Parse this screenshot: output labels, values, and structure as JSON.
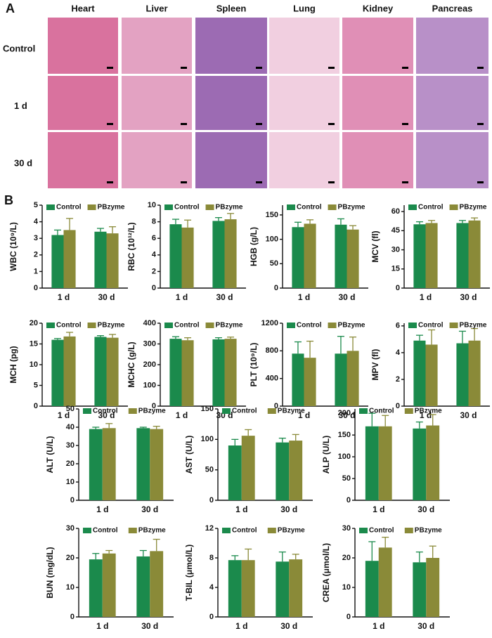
{
  "panel_a": {
    "label": "A",
    "columns": [
      "Heart",
      "Liver",
      "Spleen",
      "Lung",
      "Kidney",
      "Pancreas"
    ],
    "rows": [
      "Control",
      "1 d",
      "30 d"
    ]
  },
  "panel_b": {
    "label": "B"
  },
  "chart_data": [
    {
      "type": "bar",
      "ylabel": "WBC (10⁹/L)",
      "categories": [
        "1 d",
        "30 d"
      ],
      "ylim": [
        0,
        5
      ],
      "yticks": [
        0,
        1,
        2,
        3,
        4,
        5
      ],
      "series": [
        {
          "name": "Control",
          "color": "#1b8a4c",
          "values": [
            3.2,
            3.4
          ],
          "errors": [
            0.3,
            0.2
          ]
        },
        {
          "name": "PBzyme",
          "color": "#8a8a38",
          "values": [
            3.5,
            3.3
          ],
          "errors": [
            0.7,
            0.4
          ]
        }
      ]
    },
    {
      "type": "bar",
      "ylabel": "RBC (10¹²/L)",
      "categories": [
        "1 d",
        "30 d"
      ],
      "ylim": [
        0,
        10
      ],
      "yticks": [
        0,
        2,
        4,
        6,
        8,
        10
      ],
      "series": [
        {
          "name": "Control",
          "color": "#1b8a4c",
          "values": [
            7.7,
            8.1
          ],
          "errors": [
            0.6,
            0.4
          ]
        },
        {
          "name": "PBzyme",
          "color": "#8a8a38",
          "values": [
            7.3,
            8.3
          ],
          "errors": [
            0.9,
            0.7
          ]
        }
      ]
    },
    {
      "type": "bar",
      "ylabel": "HGB (g/L)",
      "categories": [
        "1 d",
        "30 d"
      ],
      "ylim": [
        0,
        170
      ],
      "yticks": [
        0,
        50,
        100,
        150
      ],
      "series": [
        {
          "name": "Control",
          "color": "#1b8a4c",
          "values": [
            125,
            130
          ],
          "errors": [
            10,
            12
          ]
        },
        {
          "name": "PBzyme",
          "color": "#8a8a38",
          "values": [
            132,
            120
          ],
          "errors": [
            8,
            8
          ]
        }
      ]
    },
    {
      "type": "bar",
      "ylabel": "MCV (fl)",
      "categories": [
        "1 d",
        "30 d"
      ],
      "ylim": [
        0,
        65
      ],
      "yticks": [
        0,
        15,
        30,
        45,
        60
      ],
      "series": [
        {
          "name": "Control",
          "color": "#1b8a4c",
          "values": [
            50,
            51
          ],
          "errors": [
            2,
            2
          ]
        },
        {
          "name": "PBzyme",
          "color": "#8a8a38",
          "values": [
            51,
            53
          ],
          "errors": [
            2,
            2
          ]
        }
      ]
    },
    {
      "type": "bar",
      "ylabel": "MCH (pg)",
      "categories": [
        "1 d",
        "30 d"
      ],
      "ylim": [
        0,
        20
      ],
      "yticks": [
        0,
        5,
        10,
        15,
        20
      ],
      "series": [
        {
          "name": "Control",
          "color": "#1b8a4c",
          "values": [
            16,
            16.7
          ],
          "errors": [
            0.3,
            0.3
          ]
        },
        {
          "name": "PBzyme",
          "color": "#8a8a38",
          "values": [
            16.8,
            16.5
          ],
          "errors": [
            1,
            0.8
          ]
        }
      ]
    },
    {
      "type": "bar",
      "ylabel": "MCHC (g/L)",
      "categories": [
        "1 d",
        "30 d"
      ],
      "ylim": [
        0,
        400
      ],
      "yticks": [
        0,
        100,
        200,
        300,
        400
      ],
      "series": [
        {
          "name": "Control",
          "color": "#1b8a4c",
          "values": [
            325,
            322
          ],
          "errors": [
            10,
            8
          ]
        },
        {
          "name": "PBzyme",
          "color": "#8a8a38",
          "values": [
            318,
            325
          ],
          "errors": [
            12,
            8
          ]
        }
      ]
    },
    {
      "type": "bar",
      "ylabel": "PLT (10⁹/L)",
      "categories": [
        "1 d",
        "30 d"
      ],
      "ylim": [
        0,
        1200
      ],
      "yticks": [
        0,
        400,
        800,
        1200
      ],
      "series": [
        {
          "name": "Control",
          "color": "#1b8a4c",
          "values": [
            760,
            760
          ],
          "errors": [
            170,
            250
          ]
        },
        {
          "name": "PBzyme",
          "color": "#8a8a38",
          "values": [
            700,
            800
          ],
          "errors": [
            240,
            200
          ]
        }
      ]
    },
    {
      "type": "bar",
      "ylabel": "MPV (fl)",
      "categories": [
        "1 d",
        "30 d"
      ],
      "ylim": [
        0,
        6.2
      ],
      "yticks": [
        0,
        2,
        4,
        6
      ],
      "series": [
        {
          "name": "Control",
          "color": "#1b8a4c",
          "values": [
            4.9,
            4.7
          ],
          "errors": [
            0.4,
            0.9
          ]
        },
        {
          "name": "PBzyme",
          "color": "#8a8a38",
          "values": [
            4.6,
            4.9
          ],
          "errors": [
            1.1,
            0.9
          ]
        }
      ]
    },
    {
      "type": "bar",
      "ylabel": "ALT (U/L)",
      "categories": [
        "1 d",
        "30 d"
      ],
      "ylim": [
        0,
        50
      ],
      "yticks": [
        0,
        10,
        20,
        30,
        40,
        50
      ],
      "series": [
        {
          "name": "Control",
          "color": "#1b8a4c",
          "values": [
            39,
            39.5
          ],
          "errors": [
            1,
            0.5
          ]
        },
        {
          "name": "PBzyme",
          "color": "#8a8a38",
          "values": [
            39.5,
            39
          ],
          "errors": [
            2.5,
            1.5
          ]
        }
      ]
    },
    {
      "type": "bar",
      "ylabel": "AST (U/L)",
      "categories": [
        "1 d",
        "30 d"
      ],
      "ylim": [
        0,
        150
      ],
      "yticks": [
        0,
        50,
        100,
        150
      ],
      "series": [
        {
          "name": "Control",
          "color": "#1b8a4c",
          "values": [
            90,
            95
          ],
          "errors": [
            10,
            7
          ]
        },
        {
          "name": "PBzyme",
          "color": "#8a8a38",
          "values": [
            106,
            98
          ],
          "errors": [
            10,
            10
          ]
        }
      ]
    },
    {
      "type": "bar",
      "ylabel": "ALP (U/L)",
      "categories": [
        "1 d",
        "30 d"
      ],
      "ylim": [
        0,
        210
      ],
      "yticks": [
        0,
        50,
        100,
        150,
        200
      ],
      "series": [
        {
          "name": "Control",
          "color": "#1b8a4c",
          "values": [
            170,
            165
          ],
          "errors": [
            30,
            15
          ]
        },
        {
          "name": "PBzyme",
          "color": "#8a8a38",
          "values": [
            170,
            172
          ],
          "errors": [
            25,
            25
          ]
        }
      ]
    },
    {
      "type": "bar",
      "ylabel": "BUN (mg/dL)",
      "categories": [
        "1 d",
        "30 d"
      ],
      "ylim": [
        0,
        30
      ],
      "yticks": [
        0,
        10,
        20,
        30
      ],
      "series": [
        {
          "name": "Control",
          "color": "#1b8a4c",
          "values": [
            19.5,
            20.5
          ],
          "errors": [
            2,
            2
          ]
        },
        {
          "name": "PBzyme",
          "color": "#8a8a38",
          "values": [
            21.5,
            22.3
          ],
          "errors": [
            1,
            4
          ]
        }
      ]
    },
    {
      "type": "bar",
      "ylabel": "T-BIL (μmol/L)",
      "categories": [
        "1 d",
        "30 d"
      ],
      "ylim": [
        0,
        12
      ],
      "yticks": [
        0,
        4,
        8,
        12
      ],
      "series": [
        {
          "name": "Control",
          "color": "#1b8a4c",
          "values": [
            7.7,
            7.5
          ],
          "errors": [
            0.6,
            1.3
          ]
        },
        {
          "name": "PBzyme",
          "color": "#8a8a38",
          "values": [
            7.7,
            7.8
          ],
          "errors": [
            1.5,
            0.7
          ]
        }
      ]
    },
    {
      "type": "bar",
      "ylabel": "CREA (μmol/L)",
      "categories": [
        "1 d",
        "30 d"
      ],
      "ylim": [
        0,
        30
      ],
      "yticks": [
        0,
        10,
        20,
        30
      ],
      "series": [
        {
          "name": "Control",
          "color": "#1b8a4c",
          "values": [
            19,
            18.5
          ],
          "errors": [
            6.5,
            3.5
          ]
        },
        {
          "name": "PBzyme",
          "color": "#8a8a38",
          "values": [
            23.5,
            20
          ],
          "errors": [
            3.5,
            4
          ]
        }
      ]
    }
  ]
}
